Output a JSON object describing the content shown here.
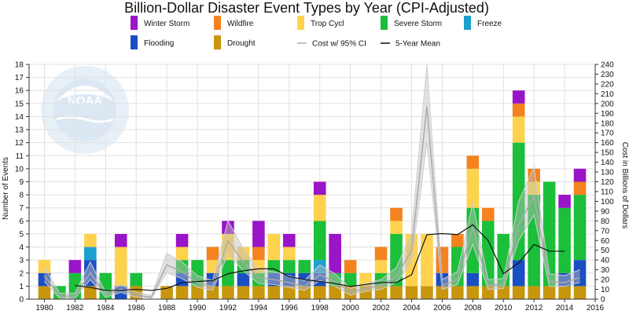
{
  "chart_data": {
    "type": "bar",
    "title": "Billion-Dollar Disaster Event Types by Year (CPI-Adjusted)",
    "ylabel": "Number of Events",
    "y2label": "Cost in Billions of Dollars",
    "ylim": [
      0,
      18
    ],
    "y2lim": [
      0,
      240
    ],
    "xlim": [
      1979,
      2016
    ],
    "x_ticks": [
      1980,
      1982,
      1984,
      1986,
      1988,
      1990,
      1992,
      1994,
      1996,
      1998,
      2000,
      2002,
      2004,
      2006,
      2008,
      2010,
      2012,
      2014,
      2016
    ],
    "y_ticks": [
      0,
      1,
      2,
      3,
      4,
      5,
      6,
      7,
      8,
      9,
      10,
      11,
      12,
      13,
      14,
      15,
      16,
      17,
      18
    ],
    "y2_ticks": [
      0,
      10,
      20,
      30,
      40,
      50,
      60,
      70,
      80,
      90,
      100,
      110,
      120,
      130,
      140,
      150,
      160,
      170,
      180,
      190,
      200,
      210,
      220,
      230,
      240
    ],
    "watermark": "NOAA",
    "years": [
      1980,
      1981,
      1982,
      1983,
      1984,
      1985,
      1986,
      1987,
      1988,
      1989,
      1990,
      1991,
      1992,
      1993,
      1994,
      1995,
      1996,
      1997,
      1998,
      1999,
      2000,
      2001,
      2002,
      2003,
      2004,
      2005,
      2006,
      2007,
      2008,
      2009,
      2010,
      2011,
      2012,
      2013,
      2014,
      2015
    ],
    "series": [
      {
        "name": "Drought",
        "color": "#c8960c",
        "values": [
          1,
          0,
          0,
          1,
          0,
          0,
          1,
          0,
          1,
          1,
          1,
          1,
          1,
          1,
          1,
          1,
          1,
          1,
          1,
          1,
          1,
          1,
          1,
          1,
          1,
          1,
          1,
          1,
          1,
          1,
          1,
          1,
          1,
          1,
          1,
          1
        ]
      },
      {
        "name": "Flooding",
        "color": "#1a4fc4",
        "values": [
          1,
          0,
          0,
          2,
          0,
          1,
          0,
          0,
          0,
          1,
          0,
          1,
          0,
          1,
          0,
          1,
          1,
          1,
          1,
          0,
          0,
          0,
          0,
          0,
          0,
          0,
          1,
          0,
          1,
          0,
          0,
          2,
          0,
          0,
          1,
          2
        ]
      },
      {
        "name": "Freeze",
        "color": "#1b9fcf",
        "values": [
          0,
          0,
          0,
          1,
          0,
          0,
          0,
          0,
          0,
          0,
          0,
          0,
          0,
          0,
          0,
          0,
          0,
          0,
          1,
          0,
          0,
          0,
          0,
          0,
          0,
          0,
          0,
          0,
          0,
          0,
          0,
          0,
          0,
          0,
          0,
          0
        ]
      },
      {
        "name": "Severe Storm",
        "color": "#1bbf3a",
        "values": [
          0,
          1,
          2,
          0,
          2,
          0,
          1,
          0,
          0,
          1,
          2,
          0,
          2,
          1,
          1,
          1,
          1,
          1,
          3,
          1,
          1,
          0,
          1,
          4,
          0,
          0,
          0,
          3,
          5,
          5,
          4,
          9,
          7,
          8,
          5,
          5
        ]
      },
      {
        "name": "Trop Cycl",
        "color": "#ffd24d",
        "values": [
          1,
          0,
          0,
          1,
          0,
          3,
          0,
          0,
          0,
          1,
          0,
          1,
          2,
          1,
          1,
          2,
          1,
          0,
          2,
          0,
          0,
          1,
          1,
          1,
          4,
          4,
          0,
          0,
          3,
          0,
          0,
          2,
          1,
          0,
          0,
          0
        ]
      },
      {
        "name": "Wildfire",
        "color": "#f4821f",
        "values": [
          0,
          0,
          0,
          0,
          0,
          0,
          0,
          0,
          0,
          0,
          0,
          1,
          0,
          0,
          1,
          0,
          0,
          0,
          0,
          0,
          1,
          0,
          1,
          1,
          0,
          0,
          2,
          1,
          1,
          1,
          0,
          1,
          1,
          0,
          0,
          1
        ]
      },
      {
        "name": "Winter Storm",
        "color": "#9a14c8",
        "values": [
          0,
          0,
          1,
          0,
          0,
          1,
          0,
          0,
          0,
          1,
          0,
          0,
          1,
          0,
          2,
          0,
          1,
          0,
          1,
          3,
          0,
          0,
          0,
          0,
          0,
          0,
          0,
          0,
          0,
          0,
          0,
          1,
          0,
          0,
          1,
          1
        ]
      }
    ],
    "lines": [
      {
        "name": "Cost w/ 95% CI",
        "color": "#aaaaaa",
        "ci_color": "#bfbfbf",
        "values": [
          24,
          3,
          3,
          27,
          4,
          10,
          4,
          2,
          35,
          28,
          17,
          13,
          60,
          38,
          22,
          20,
          17,
          13,
          25,
          18,
          7,
          11,
          14,
          23,
          50,
          197,
          14,
          20,
          73,
          14,
          15,
          76,
          105,
          18,
          17,
          22
        ],
        "ci_low": [
          18,
          1,
          1,
          20,
          2,
          7,
          2,
          1,
          27,
          21,
          12,
          9,
          46,
          29,
          16,
          15,
          12,
          9,
          19,
          13,
          4,
          8,
          10,
          17,
          38,
          160,
          10,
          15,
          56,
          10,
          11,
          60,
          86,
          13,
          13,
          17
        ],
        "ci_high": [
          33,
          6,
          6,
          38,
          7,
          15,
          7,
          4,
          47,
          38,
          24,
          19,
          80,
          52,
          30,
          28,
          24,
          19,
          35,
          26,
          11,
          16,
          20,
          32,
          68,
          240,
          20,
          28,
          98,
          20,
          21,
          100,
          135,
          26,
          24,
          30
        ]
      },
      {
        "name": "5-Year Mean",
        "color": "#111111",
        "values": [
          null,
          null,
          14,
          12,
          9,
          9,
          10,
          9,
          11,
          17,
          18,
          19,
          26,
          29,
          31,
          31,
          23,
          20,
          18,
          16,
          13,
          15,
          17,
          17,
          25,
          66,
          67,
          66,
          76,
          60,
          26,
          37,
          56,
          49,
          49,
          null
        ]
      }
    ],
    "legend": [
      {
        "name": "Winter Storm",
        "color": "#9a14c8",
        "kind": "box"
      },
      {
        "name": "Wildfire",
        "color": "#f4821f",
        "kind": "box"
      },
      {
        "name": "Trop Cycl",
        "color": "#ffd24d",
        "kind": "box"
      },
      {
        "name": "Severe Storm",
        "color": "#1bbf3a",
        "kind": "box"
      },
      {
        "name": "Freeze",
        "color": "#1b9fcf",
        "kind": "box"
      },
      {
        "name": "Flooding",
        "color": "#1a4fc4",
        "kind": "box"
      },
      {
        "name": "Drought",
        "color": "#c8960c",
        "kind": "box"
      },
      {
        "name": "Cost w/ 95% CI",
        "color": "#aaaaaa",
        "kind": "line"
      },
      {
        "name": "5-Year Mean",
        "color": "#111111",
        "kind": "line"
      }
    ]
  }
}
